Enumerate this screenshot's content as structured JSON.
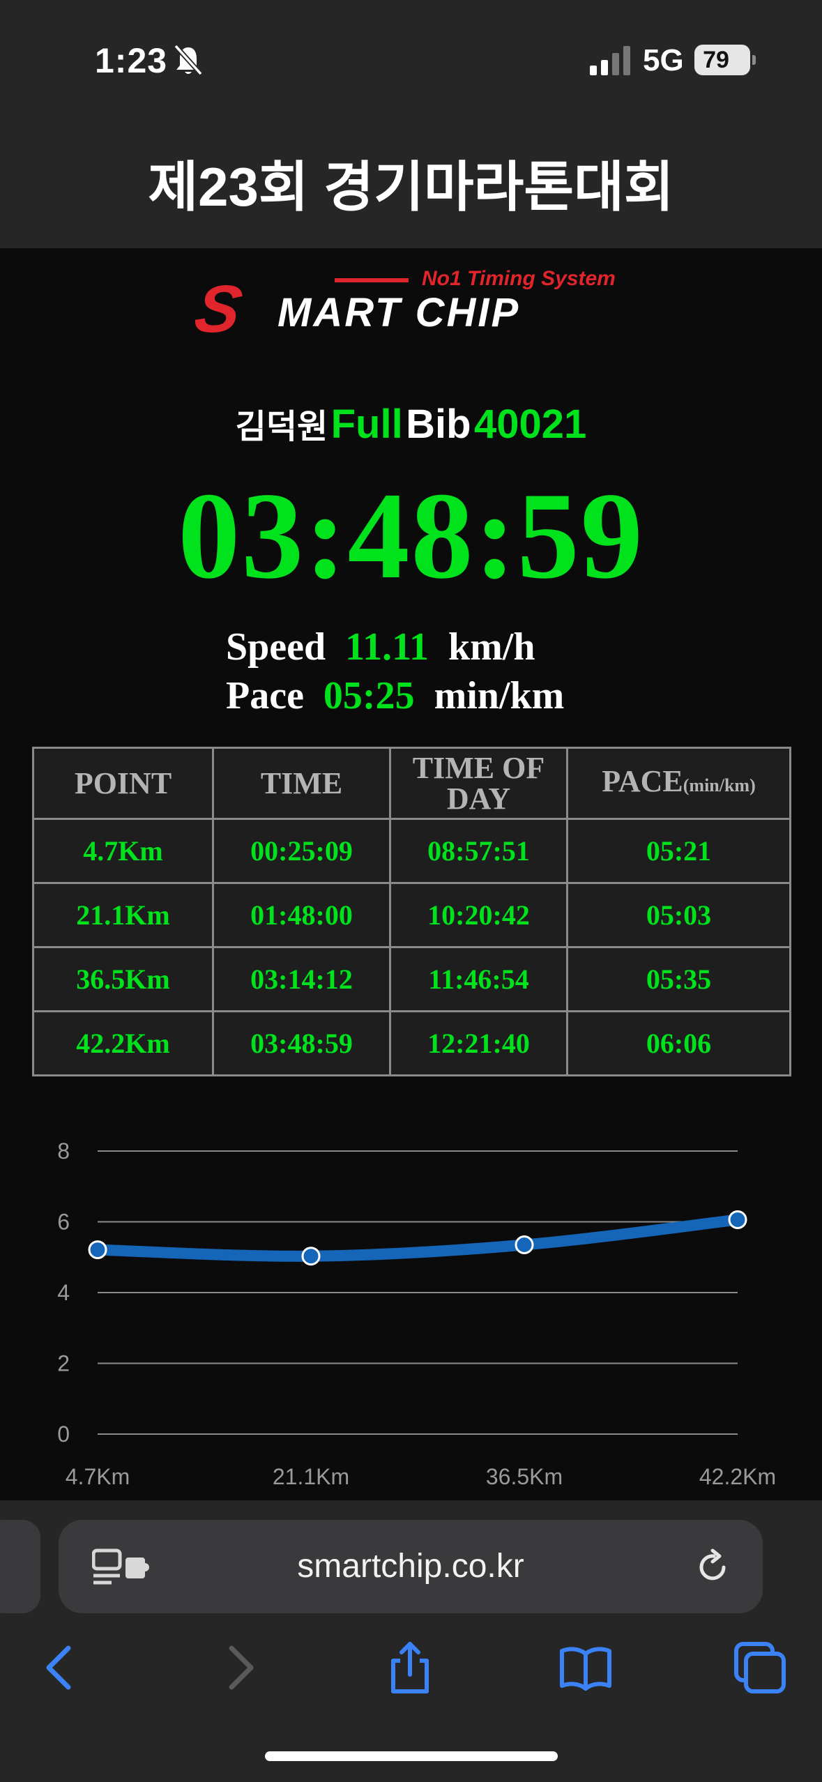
{
  "status": {
    "time": "1:23",
    "network": "5G",
    "battery": "79"
  },
  "header": {
    "title": "제23회 경기마라톤대회"
  },
  "logo": {
    "tagline": "No1 Timing System",
    "brand_s": "S",
    "brand_rest": "MART CHIP"
  },
  "runner": {
    "name": "김덕원",
    "category": "Full",
    "bib_label": "Bib",
    "bib": "40021"
  },
  "result": {
    "finish_time": "03:48:59",
    "speed_label": "Speed",
    "speed": "11.11",
    "speed_unit": "km/h",
    "pace_label": "Pace",
    "pace": "05:25",
    "pace_unit": "min/km"
  },
  "table": {
    "headers": {
      "point": "POINT",
      "time": "TIME",
      "tod_line1": "TIME OF",
      "tod_line2": "DAY",
      "pace": "PACE",
      "pace_unit": "(min/km)"
    },
    "rows": [
      {
        "point": "4.7Km",
        "time": "00:25:09",
        "tod": "08:57:51",
        "pace": "05:21"
      },
      {
        "point": "21.1Km",
        "time": "01:48:00",
        "tod": "10:20:42",
        "pace": "05:03"
      },
      {
        "point": "36.5Km",
        "time": "03:14:12",
        "tod": "11:46:54",
        "pace": "05:35"
      },
      {
        "point": "42.2Km",
        "time": "03:48:59",
        "tod": "12:21:40",
        "pace": "06:06"
      }
    ]
  },
  "chart_data": {
    "type": "line",
    "categories": [
      "4.7Km",
      "21.1Km",
      "36.5Km",
      "42.2Km"
    ],
    "series": [
      {
        "values": [
          5.21,
          5.03,
          5.35,
          6.06
        ],
        "color": "#1565b8"
      }
    ],
    "ylim": [
      0,
      8
    ],
    "yticks": [
      0,
      2,
      4,
      6,
      8
    ],
    "grid": true
  },
  "browser": {
    "url": "smartchip.co.kr"
  },
  "colors": {
    "accent_green": "#00e21c",
    "brand_red": "#e0262c",
    "line_blue": "#1565b8",
    "ios_blue": "#3b82f6"
  }
}
